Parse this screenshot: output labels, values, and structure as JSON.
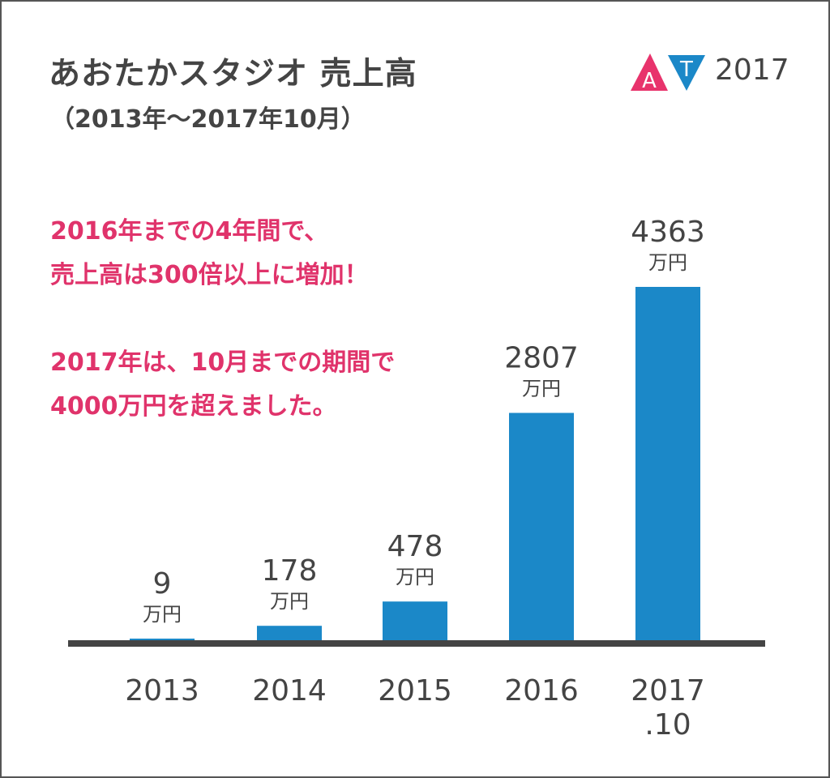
{
  "header": {
    "title": "あおたかスタジオ 売上高",
    "subtitle": "（2013年〜2017年10月）",
    "logo_text": "AT",
    "logo_year": "2017"
  },
  "notes": [
    "2016年までの4年間で、",
    "売上高は300倍以上に増加！",
    "2017年は、10月までの期間で",
    "4000万円を超えました。"
  ],
  "colors": {
    "bar": "#1b88c8",
    "accent_pink": "#e0336b",
    "text": "#444444",
    "logo_pink": "#e8336c",
    "logo_blue": "#1b88c8"
  },
  "chart_data": {
    "type": "bar",
    "categories": [
      "2013",
      "2014",
      "2015",
      "2016",
      "2017\n.10"
    ],
    "values": [
      9,
      178,
      478,
      2807,
      4363
    ],
    "value_unit": "万円",
    "title": "あおたかスタジオ 売上高",
    "subtitle": "（2013年〜2017年10月）",
    "xlabel": "",
    "ylabel": "",
    "ylim": [
      0,
      4363
    ],
    "grid": false,
    "legend": "none",
    "data_labels": true
  }
}
